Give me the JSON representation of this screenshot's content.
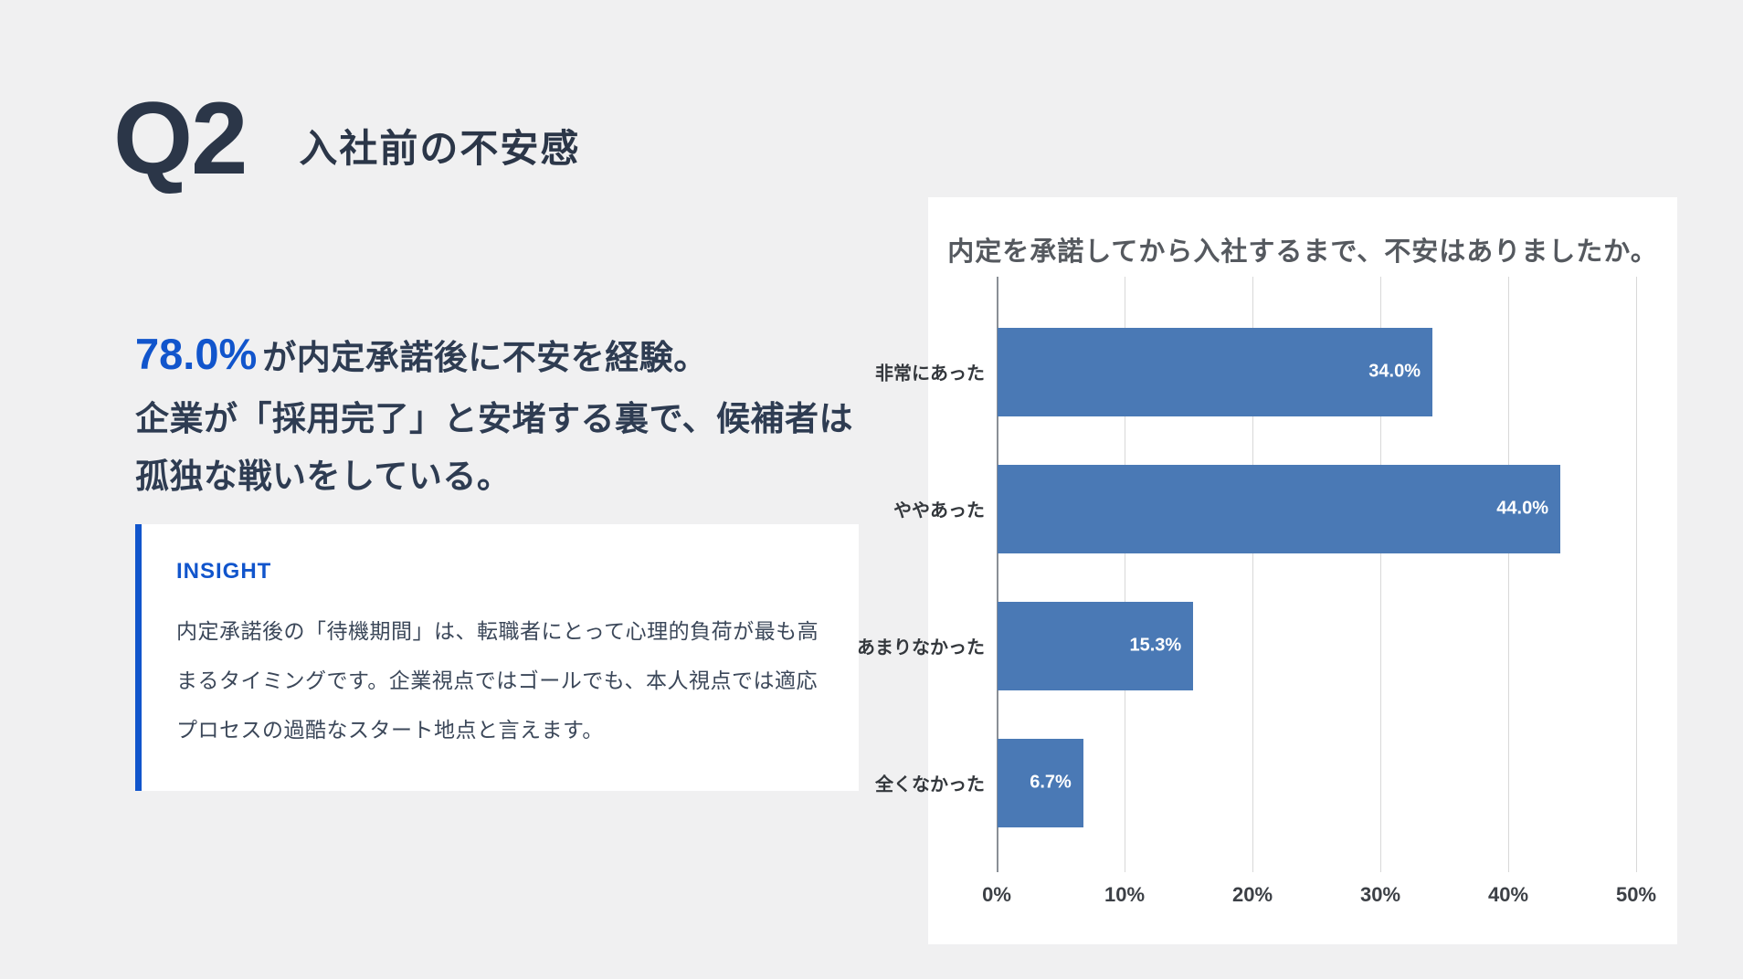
{
  "page": {
    "question_number": "Q2",
    "question_title": "入社前の不安感"
  },
  "summary": {
    "stat_value": "78.0%",
    "stat_text": "が内定承諾後に不安を経験。",
    "line2": "企業が「採用完了」と安堵する裏で、候補者は孤独な戦いをしている。"
  },
  "insight": {
    "label": "INSIGHT",
    "body": "内定承諾後の「待機期間」は、転職者にとって心理的負荷が最も高まるタイミングです。企業視点ではゴールでも、本人視点では適応プロセスの過酷なスタート地点と言えます。"
  },
  "chart_data": {
    "type": "bar",
    "orientation": "horizontal",
    "title": "内定を承諾してから入社するまで、不安はありましたか。",
    "categories": [
      "非常にあった",
      "ややあった",
      "あまりなかった",
      "全くなかった"
    ],
    "values": [
      34.0,
      44.0,
      15.3,
      6.7
    ],
    "value_labels": [
      "34.0%",
      "44.0%",
      "15.3%",
      "6.7%"
    ],
    "x_ticks": [
      "0%",
      "10%",
      "20%",
      "30%",
      "40%",
      "50%"
    ],
    "x_tick_values": [
      0,
      10,
      20,
      30,
      40,
      50
    ],
    "xlim": [
      0,
      50
    ],
    "grid": true,
    "legend": "none",
    "bar_color": "#4a79b5",
    "value_label_position": "inside-end"
  },
  "colors": {
    "page_background": "#f0f0f1",
    "card_background": "#ffffff",
    "accent_blue": "#1155cc",
    "bar_blue": "#4a79b5",
    "heading_navy": "#2b3648",
    "body_text": "#3b4759",
    "chart_title_gray": "#55595f"
  }
}
